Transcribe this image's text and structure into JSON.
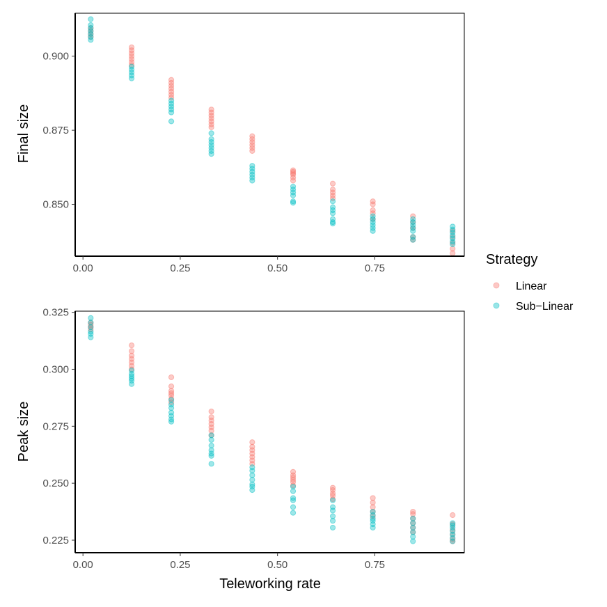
{
  "chart_data": [
    {
      "type": "scatter",
      "panel": "top",
      "xlabel": "",
      "ylabel": "Final size",
      "xlim": [
        -0.02,
        0.98
      ],
      "ylim": [
        0.8325,
        0.9145
      ],
      "x_ticks": [
        0.0,
        0.25,
        0.5,
        0.75
      ],
      "x_tick_labels": [
        "0.00",
        "0.25",
        "0.50",
        "0.75"
      ],
      "y_ticks": [
        0.85,
        0.875,
        0.9
      ],
      "y_tick_labels": [
        "0.850",
        "0.875",
        "0.900"
      ],
      "grid": false,
      "series": [
        {
          "name": "Linear",
          "points": [
            [
              0.02,
              0.9095
            ],
            [
              0.02,
              0.9085
            ],
            [
              0.02,
              0.9075
            ],
            [
              0.02,
              0.9065
            ],
            [
              0.125,
              0.903
            ],
            [
              0.125,
              0.902
            ],
            [
              0.125,
              0.901
            ],
            [
              0.125,
              0.9
            ],
            [
              0.125,
              0.899
            ],
            [
              0.125,
              0.898
            ],
            [
              0.125,
              0.897
            ],
            [
              0.227,
              0.892
            ],
            [
              0.227,
              0.891
            ],
            [
              0.227,
              0.89
            ],
            [
              0.227,
              0.889
            ],
            [
              0.227,
              0.888
            ],
            [
              0.227,
              0.887
            ],
            [
              0.227,
              0.886
            ],
            [
              0.33,
              0.882
            ],
            [
              0.33,
              0.881
            ],
            [
              0.33,
              0.88
            ],
            [
              0.33,
              0.879
            ],
            [
              0.33,
              0.878
            ],
            [
              0.33,
              0.877
            ],
            [
              0.33,
              0.876
            ],
            [
              0.435,
              0.873
            ],
            [
              0.435,
              0.872
            ],
            [
              0.435,
              0.871
            ],
            [
              0.435,
              0.87
            ],
            [
              0.435,
              0.869
            ],
            [
              0.435,
              0.868
            ],
            [
              0.54,
              0.8615
            ],
            [
              0.54,
              0.861
            ],
            [
              0.54,
              0.8605
            ],
            [
              0.54,
              0.86
            ],
            [
              0.54,
              0.859
            ],
            [
              0.54,
              0.858
            ],
            [
              0.642,
              0.857
            ],
            [
              0.642,
              0.855
            ],
            [
              0.642,
              0.854
            ],
            [
              0.642,
              0.853
            ],
            [
              0.642,
              0.852
            ],
            [
              0.745,
              0.851
            ],
            [
              0.745,
              0.85
            ],
            [
              0.745,
              0.848
            ],
            [
              0.745,
              0.847
            ],
            [
              0.745,
              0.845
            ],
            [
              0.848,
              0.846
            ],
            [
              0.848,
              0.844
            ],
            [
              0.848,
              0.842
            ],
            [
              0.848,
              0.839
            ],
            [
              0.848,
              0.838
            ],
            [
              0.95,
              0.841
            ],
            [
              0.95,
              0.839
            ],
            [
              0.95,
              0.837
            ],
            [
              0.95,
              0.835
            ],
            [
              0.95,
              0.8335
            ]
          ]
        },
        {
          "name": "Sub-Linear",
          "points": [
            [
              0.02,
              0.9125
            ],
            [
              0.02,
              0.9105
            ],
            [
              0.02,
              0.9095
            ],
            [
              0.02,
              0.9085
            ],
            [
              0.02,
              0.9075
            ],
            [
              0.02,
              0.9065
            ],
            [
              0.02,
              0.9055
            ],
            [
              0.125,
              0.8965
            ],
            [
              0.125,
              0.8955
            ],
            [
              0.125,
              0.8945
            ],
            [
              0.125,
              0.8935
            ],
            [
              0.125,
              0.8925
            ],
            [
              0.227,
              0.885
            ],
            [
              0.227,
              0.884
            ],
            [
              0.227,
              0.883
            ],
            [
              0.227,
              0.882
            ],
            [
              0.227,
              0.881
            ],
            [
              0.227,
              0.878
            ],
            [
              0.33,
              0.874
            ],
            [
              0.33,
              0.872
            ],
            [
              0.33,
              0.871
            ],
            [
              0.33,
              0.87
            ],
            [
              0.33,
              0.869
            ],
            [
              0.33,
              0.868
            ],
            [
              0.33,
              0.867
            ],
            [
              0.435,
              0.863
            ],
            [
              0.435,
              0.862
            ],
            [
              0.435,
              0.861
            ],
            [
              0.435,
              0.86
            ],
            [
              0.435,
              0.859
            ],
            [
              0.435,
              0.858
            ],
            [
              0.54,
              0.856
            ],
            [
              0.54,
              0.855
            ],
            [
              0.54,
              0.854
            ],
            [
              0.54,
              0.853
            ],
            [
              0.54,
              0.851
            ],
            [
              0.54,
              0.8505
            ],
            [
              0.642,
              0.851
            ],
            [
              0.642,
              0.849
            ],
            [
              0.642,
              0.848
            ],
            [
              0.642,
              0.847
            ],
            [
              0.642,
              0.845
            ],
            [
              0.642,
              0.844
            ],
            [
              0.642,
              0.8435
            ],
            [
              0.745,
              0.846
            ],
            [
              0.745,
              0.845
            ],
            [
              0.745,
              0.844
            ],
            [
              0.745,
              0.843
            ],
            [
              0.745,
              0.842
            ],
            [
              0.745,
              0.841
            ],
            [
              0.848,
              0.845
            ],
            [
              0.848,
              0.844
            ],
            [
              0.848,
              0.843
            ],
            [
              0.848,
              0.842
            ],
            [
              0.848,
              0.841
            ],
            [
              0.848,
              0.839
            ],
            [
              0.848,
              0.838
            ],
            [
              0.95,
              0.8425
            ],
            [
              0.95,
              0.8415
            ],
            [
              0.95,
              0.8405
            ],
            [
              0.95,
              0.8395
            ],
            [
              0.95,
              0.8385
            ],
            [
              0.95,
              0.8375
            ],
            [
              0.95,
              0.8365
            ]
          ]
        }
      ]
    },
    {
      "type": "scatter",
      "panel": "bottom",
      "xlabel": "Teleworking rate",
      "ylabel": "Peak size",
      "xlim": [
        -0.02,
        0.98
      ],
      "ylim": [
        0.2195,
        0.3255
      ],
      "x_ticks": [
        0.0,
        0.25,
        0.5,
        0.75
      ],
      "x_tick_labels": [
        "0.00",
        "0.25",
        "0.50",
        "0.75"
      ],
      "y_ticks": [
        0.225,
        0.25,
        0.275,
        0.3,
        0.325
      ],
      "y_tick_labels": [
        "0.225",
        "0.250",
        "0.275",
        "0.300",
        "0.325"
      ],
      "grid": false,
      "series": [
        {
          "name": "Linear",
          "points": [
            [
              0.02,
              0.3205
            ],
            [
              0.02,
              0.3195
            ],
            [
              0.02,
              0.3185
            ],
            [
              0.02,
              0.3175
            ],
            [
              0.125,
              0.3105
            ],
            [
              0.125,
              0.308
            ],
            [
              0.125,
              0.306
            ],
            [
              0.125,
              0.3045
            ],
            [
              0.125,
              0.303
            ],
            [
              0.125,
              0.3015
            ],
            [
              0.125,
              0.3
            ],
            [
              0.227,
              0.2965
            ],
            [
              0.227,
              0.2925
            ],
            [
              0.227,
              0.2905
            ],
            [
              0.227,
              0.2895
            ],
            [
              0.227,
              0.2885
            ],
            [
              0.227,
              0.287
            ],
            [
              0.227,
              0.2855
            ],
            [
              0.33,
              0.2815
            ],
            [
              0.33,
              0.279
            ],
            [
              0.33,
              0.2775
            ],
            [
              0.33,
              0.276
            ],
            [
              0.33,
              0.2745
            ],
            [
              0.33,
              0.273
            ],
            [
              0.33,
              0.271
            ],
            [
              0.435,
              0.268
            ],
            [
              0.435,
              0.266
            ],
            [
              0.435,
              0.2645
            ],
            [
              0.435,
              0.263
            ],
            [
              0.435,
              0.2615
            ],
            [
              0.435,
              0.26
            ],
            [
              0.435,
              0.2585
            ],
            [
              0.54,
              0.255
            ],
            [
              0.54,
              0.2535
            ],
            [
              0.54,
              0.2525
            ],
            [
              0.54,
              0.2515
            ],
            [
              0.54,
              0.2505
            ],
            [
              0.54,
              0.249
            ],
            [
              0.642,
              0.248
            ],
            [
              0.642,
              0.247
            ],
            [
              0.642,
              0.2455
            ],
            [
              0.642,
              0.2445
            ],
            [
              0.642,
              0.243
            ],
            [
              0.745,
              0.2435
            ],
            [
              0.745,
              0.2415
            ],
            [
              0.745,
              0.2395
            ],
            [
              0.745,
              0.2375
            ],
            [
              0.745,
              0.2355
            ],
            [
              0.848,
              0.2375
            ],
            [
              0.848,
              0.2365
            ],
            [
              0.848,
              0.2345
            ],
            [
              0.848,
              0.2325
            ],
            [
              0.848,
              0.2305
            ],
            [
              0.848,
              0.2285
            ],
            [
              0.95,
              0.236
            ],
            [
              0.95,
              0.232
            ],
            [
              0.95,
              0.2295
            ],
            [
              0.95,
              0.2275
            ],
            [
              0.95,
              0.2255
            ],
            [
              0.95,
              0.2245
            ]
          ]
        },
        {
          "name": "Sub-Linear",
          "points": [
            [
              0.02,
              0.3225
            ],
            [
              0.02,
              0.3205
            ],
            [
              0.02,
              0.3185
            ],
            [
              0.02,
              0.3165
            ],
            [
              0.02,
              0.3155
            ],
            [
              0.02,
              0.314
            ],
            [
              0.125,
              0.2995
            ],
            [
              0.125,
              0.298
            ],
            [
              0.125,
              0.297
            ],
            [
              0.125,
              0.296
            ],
            [
              0.125,
              0.295
            ],
            [
              0.125,
              0.2935
            ],
            [
              0.227,
              0.2865
            ],
            [
              0.227,
              0.2845
            ],
            [
              0.227,
              0.283
            ],
            [
              0.227,
              0.281
            ],
            [
              0.227,
              0.2795
            ],
            [
              0.227,
              0.278
            ],
            [
              0.227,
              0.277
            ],
            [
              0.33,
              0.271
            ],
            [
              0.33,
              0.269
            ],
            [
              0.33,
              0.2665
            ],
            [
              0.33,
              0.2645
            ],
            [
              0.33,
              0.263
            ],
            [
              0.33,
              0.262
            ],
            [
              0.33,
              0.2585
            ],
            [
              0.435,
              0.257
            ],
            [
              0.435,
              0.2555
            ],
            [
              0.435,
              0.2535
            ],
            [
              0.435,
              0.2515
            ],
            [
              0.435,
              0.2495
            ],
            [
              0.435,
              0.2485
            ],
            [
              0.435,
              0.247
            ],
            [
              0.54,
              0.2485
            ],
            [
              0.54,
              0.2465
            ],
            [
              0.54,
              0.2435
            ],
            [
              0.54,
              0.2425
            ],
            [
              0.54,
              0.2395
            ],
            [
              0.54,
              0.237
            ],
            [
              0.642,
              0.2425
            ],
            [
              0.642,
              0.2395
            ],
            [
              0.642,
              0.238
            ],
            [
              0.642,
              0.2355
            ],
            [
              0.642,
              0.2335
            ],
            [
              0.642,
              0.2305
            ],
            [
              0.745,
              0.2375
            ],
            [
              0.745,
              0.236
            ],
            [
              0.745,
              0.2345
            ],
            [
              0.745,
              0.2335
            ],
            [
              0.745,
              0.232
            ],
            [
              0.745,
              0.2305
            ],
            [
              0.848,
              0.2345
            ],
            [
              0.848,
              0.2325
            ],
            [
              0.848,
              0.2305
            ],
            [
              0.848,
              0.2285
            ],
            [
              0.848,
              0.2265
            ],
            [
              0.848,
              0.2245
            ],
            [
              0.95,
              0.2325
            ],
            [
              0.95,
              0.2315
            ],
            [
              0.95,
              0.2305
            ],
            [
              0.95,
              0.229
            ],
            [
              0.95,
              0.2275
            ],
            [
              0.95,
              0.226
            ],
            [
              0.95,
              0.2245
            ]
          ]
        }
      ]
    }
  ],
  "legend": {
    "title": "Strategy",
    "position": "right",
    "items": [
      {
        "label": "Linear",
        "color": "#F8766D"
      },
      {
        "label": "Sub−Linear",
        "color": "#00BFC4"
      }
    ]
  },
  "colors": {
    "Linear": "#F8766D",
    "Sub-Linear": "#00BFC4"
  }
}
